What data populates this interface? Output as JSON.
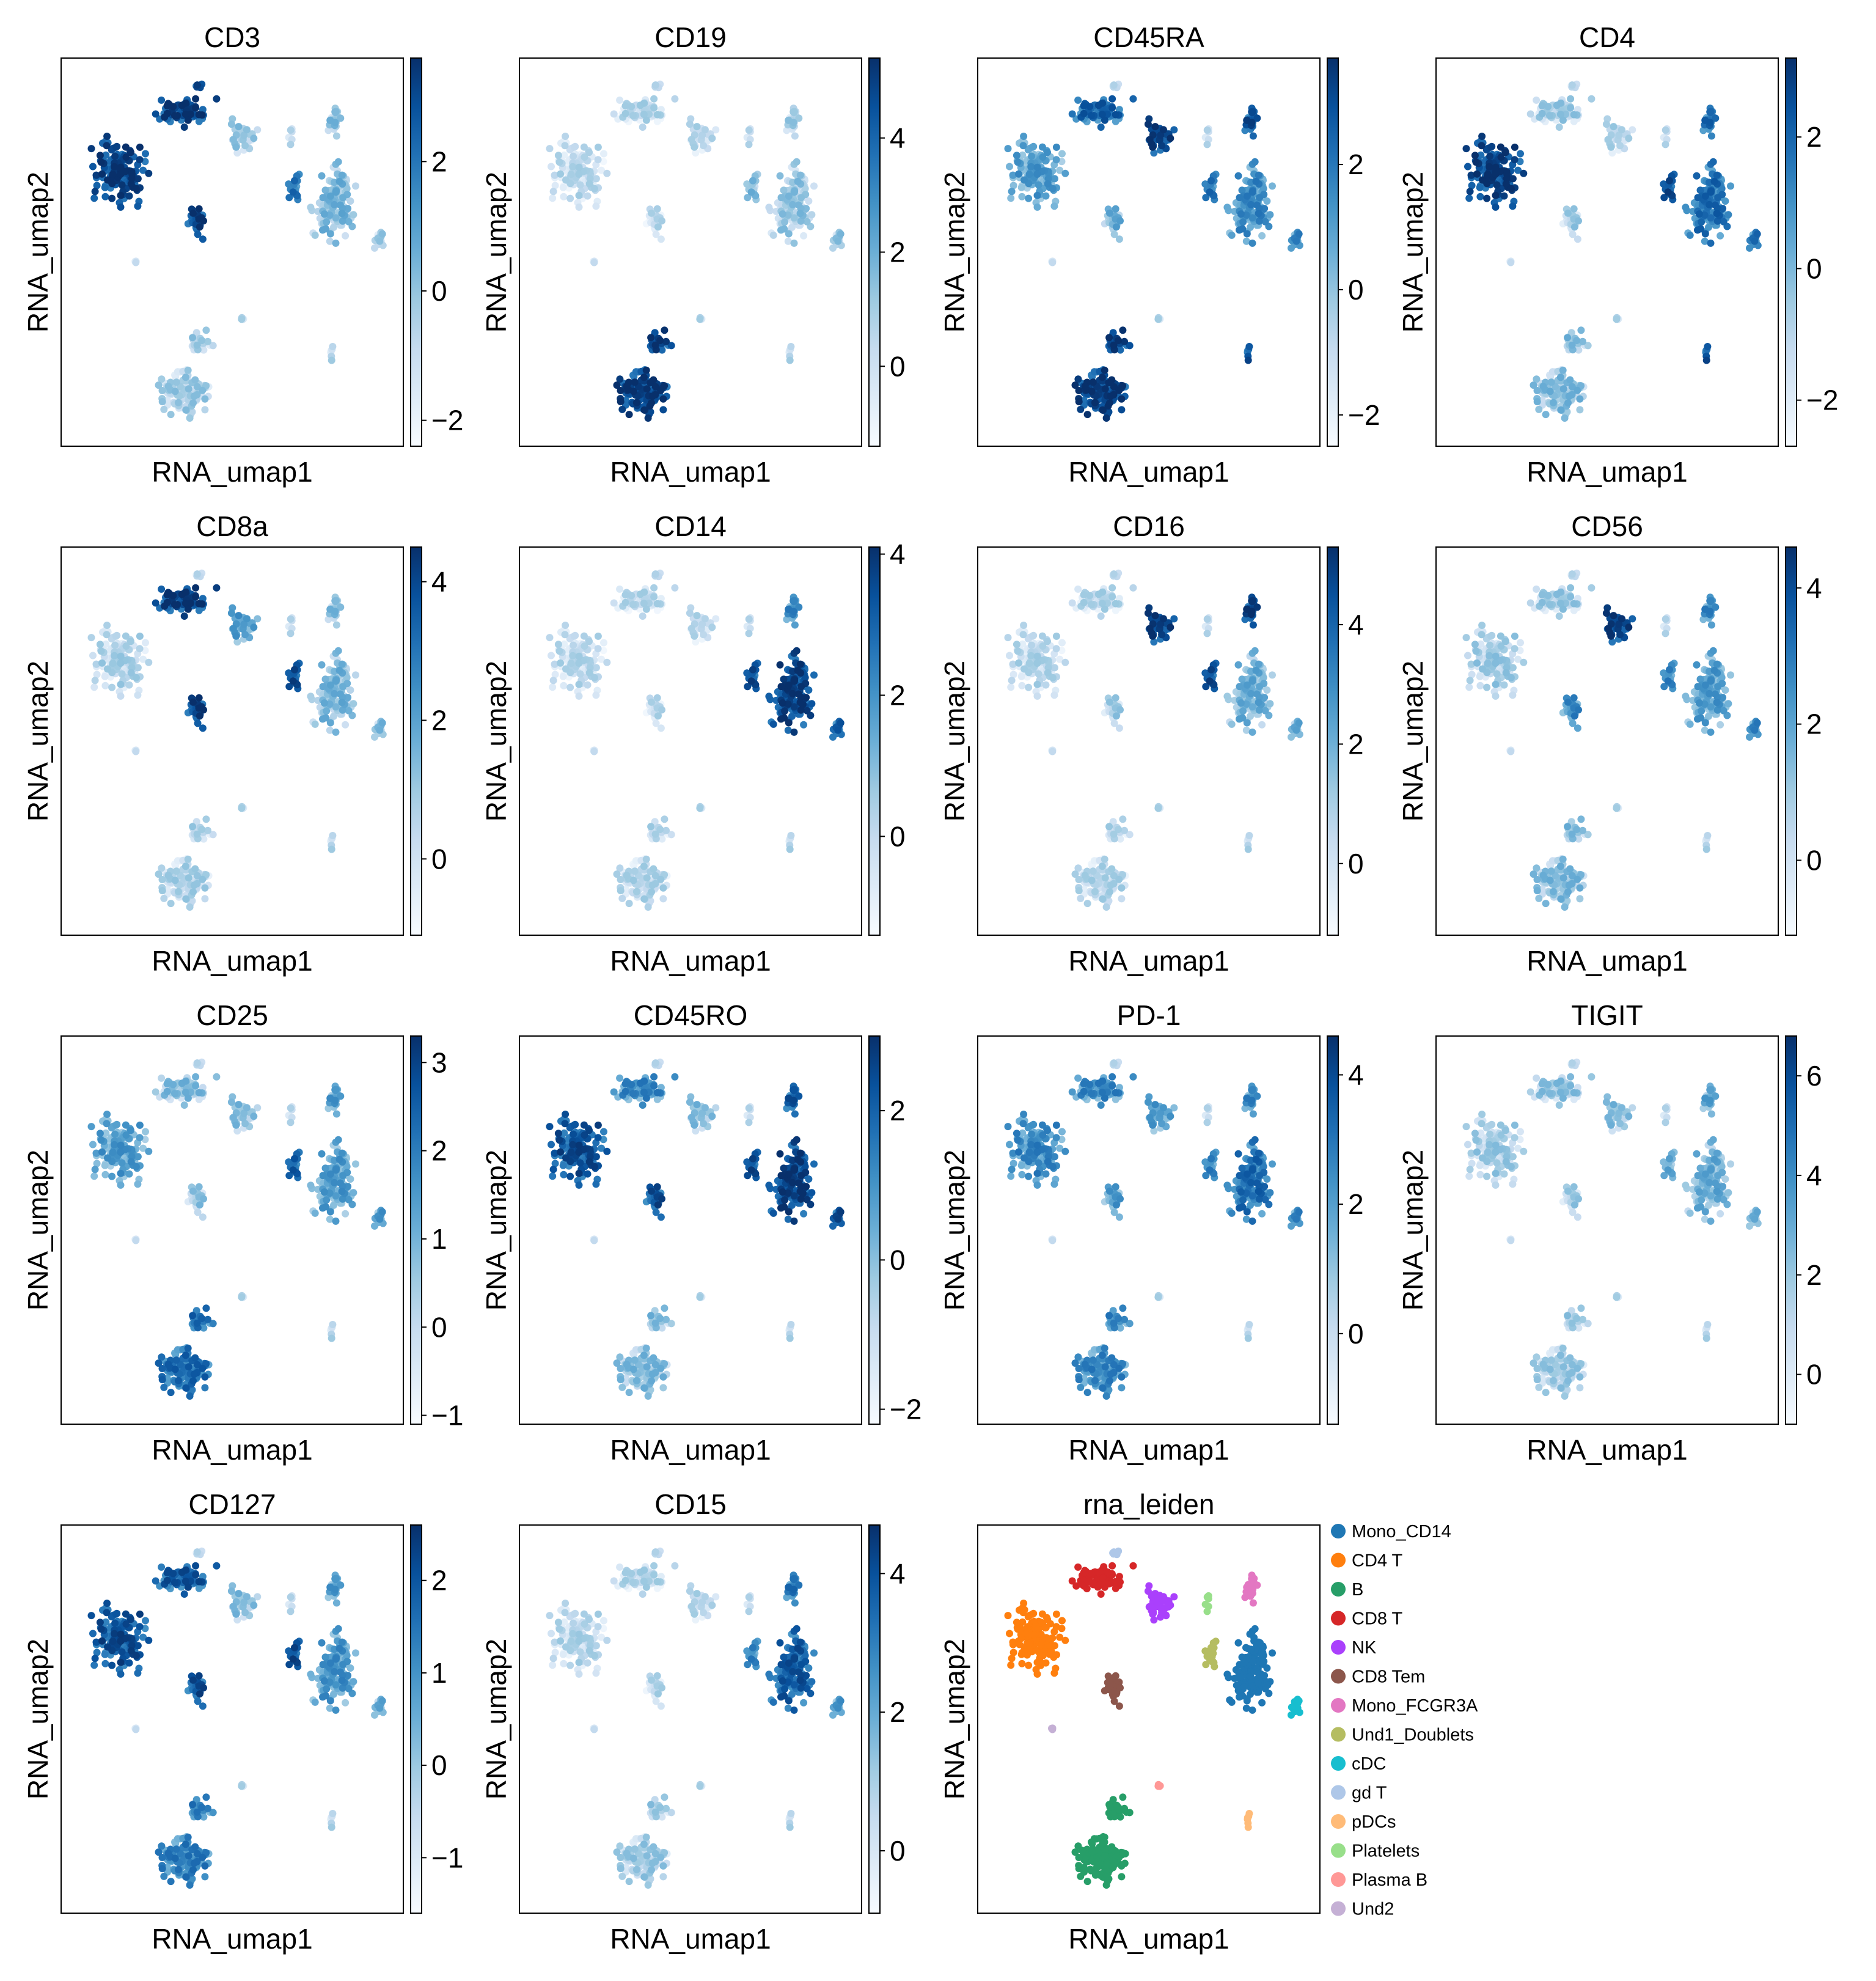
{
  "chart_data": [
    {
      "type": "scatter",
      "title": "CD3",
      "xlabel": "RNA_umap1",
      "ylabel": "RNA_umap2",
      "colormap": "Blues",
      "colorbar": {
        "range": [
          -2.4,
          3.6
        ],
        "ticks": [
          -2,
          0,
          2
        ]
      },
      "expression": {
        "CD4 T": 1.0,
        "CD8 T": 1.0,
        "CD8 Tem": 1.0,
        "NK": 0.25,
        "Mono_CD14": 0.35,
        "Mono_FCGR3A": 0.3,
        "B": 0.2,
        "cDC": 0.2,
        "Und1_Doublets": 0.7,
        "gd T": 1.0
      }
    },
    {
      "type": "scatter",
      "title": "CD19",
      "xlabel": "RNA_umap1",
      "ylabel": "RNA_umap2",
      "colormap": "Blues",
      "colorbar": {
        "range": [
          -1.4,
          5.4
        ],
        "ticks": [
          0,
          2,
          4
        ]
      },
      "expression": {
        "CD4 T": 0.1,
        "CD8 T": 0.12,
        "CD8 Tem": 0.1,
        "NK": 0.12,
        "Mono_CD14": 0.25,
        "Mono_FCGR3A": 0.2,
        "B": 1.0,
        "cDC": 0.25,
        "Und1_Doublets": 0.3
      }
    },
    {
      "type": "scatter",
      "title": "CD45RA",
      "xlabel": "RNA_umap1",
      "ylabel": "RNA_umap2",
      "colormap": "Blues",
      "colorbar": {
        "range": [
          -2.5,
          3.7
        ],
        "ticks": [
          -2,
          0,
          2
        ]
      },
      "expression": {
        "CD4 T": 0.5,
        "CD8 T": 0.8,
        "CD8 Tem": 0.4,
        "NK": 1.0,
        "Mono_CD14": 0.6,
        "Mono_FCGR3A": 0.9,
        "B": 1.0,
        "cDC": 0.6,
        "Und1_Doublets": 0.7,
        "pDCs": 0.9
      }
    },
    {
      "type": "scatter",
      "title": "CD4",
      "xlabel": "RNA_umap1",
      "ylabel": "RNA_umap2",
      "colormap": "Blues",
      "colorbar": {
        "range": [
          -2.7,
          3.2
        ],
        "ticks": [
          -2,
          0,
          2
        ]
      },
      "expression": {
        "CD4 T": 1.0,
        "CD8 T": 0.2,
        "CD8 Tem": 0.2,
        "NK": 0.15,
        "Mono_CD14": 0.75,
        "Mono_FCGR3A": 0.75,
        "B": 0.3,
        "cDC": 0.7,
        "Und1_Doublets": 0.9,
        "pDCs": 0.9
      }
    },
    {
      "type": "scatter",
      "title": "CD8a",
      "xlabel": "RNA_umap1",
      "ylabel": "RNA_umap2",
      "colormap": "Blues",
      "colorbar": {
        "range": [
          -1.1,
          4.5
        ],
        "ticks": [
          0,
          2,
          4
        ]
      },
      "expression": {
        "CD4 T": 0.15,
        "CD8 T": 1.0,
        "CD8 Tem": 1.0,
        "NK": 0.5,
        "Mono_CD14": 0.35,
        "Mono_FCGR3A": 0.3,
        "B": 0.15,
        "cDC": 0.3,
        "Und1_Doublets": 0.9
      }
    },
    {
      "type": "scatter",
      "title": "CD14",
      "xlabel": "RNA_umap1",
      "ylabel": "RNA_umap2",
      "colormap": "Blues",
      "colorbar": {
        "range": [
          -1.4,
          4.1
        ],
        "ticks": [
          0,
          2,
          4
        ]
      },
      "expression": {
        "CD4 T": 0.1,
        "CD8 T": 0.1,
        "CD8 Tem": 0.1,
        "NK": 0.1,
        "Mono_CD14": 1.0,
        "Mono_FCGR3A": 0.6,
        "B": 0.12,
        "cDC": 0.8,
        "Und1_Doublets": 0.9
      }
    },
    {
      "type": "scatter",
      "title": "CD16",
      "xlabel": "RNA_umap1",
      "ylabel": "RNA_umap2",
      "colormap": "Blues",
      "colorbar": {
        "range": [
          -1.2,
          5.3
        ],
        "ticks": [
          0,
          2,
          4
        ]
      },
      "expression": {
        "CD4 T": 0.12,
        "CD8 T": 0.12,
        "CD8 Tem": 0.2,
        "NK": 1.0,
        "Mono_CD14": 0.4,
        "Mono_FCGR3A": 1.0,
        "B": 0.12,
        "cDC": 0.4,
        "Und1_Doublets": 0.9
      }
    },
    {
      "type": "scatter",
      "title": "CD56",
      "xlabel": "RNA_umap1",
      "ylabel": "RNA_umap2",
      "colormap": "Blues",
      "colorbar": {
        "range": [
          -1.1,
          4.6
        ],
        "ticks": [
          0,
          2,
          4
        ]
      },
      "expression": {
        "CD4 T": 0.2,
        "CD8 T": 0.2,
        "CD8 Tem": 0.6,
        "NK": 1.0,
        "Mono_CD14": 0.5,
        "Mono_FCGR3A": 0.6,
        "B": 0.3,
        "cDC": 0.6,
        "Und1_Doublets": 0.6
      }
    },
    {
      "type": "scatter",
      "title": "CD25",
      "xlabel": "RNA_umap1",
      "ylabel": "RNA_umap2",
      "colormap": "Blues",
      "colorbar": {
        "range": [
          -1.1,
          3.3
        ],
        "ticks": [
          -1,
          0,
          1,
          2,
          3
        ]
      },
      "expression": {
        "CD4 T": 0.5,
        "CD8 T": 0.3,
        "CD8 Tem": 0.25,
        "NK": 0.3,
        "Mono_CD14": 0.5,
        "Mono_FCGR3A": 0.5,
        "B": 0.75,
        "cDC": 0.5,
        "Und1_Doublets": 0.8
      }
    },
    {
      "type": "scatter",
      "title": "CD45RO",
      "xlabel": "RNA_umap1",
      "ylabel": "RNA_umap2",
      "colormap": "Blues",
      "colorbar": {
        "range": [
          -2.2,
          3.0
        ],
        "ticks": [
          -2,
          0,
          2
        ]
      },
      "expression": {
        "CD4 T": 0.9,
        "CD8 T": 0.6,
        "CD8 Tem": 0.9,
        "NK": 0.3,
        "Mono_CD14": 1.0,
        "Mono_FCGR3A": 0.85,
        "B": 0.3,
        "cDC": 0.9,
        "Und1_Doublets": 0.9
      }
    },
    {
      "type": "scatter",
      "title": "PD-1",
      "xlabel": "RNA_umap1",
      "ylabel": "RNA_umap2",
      "colormap": "Blues",
      "colorbar": {
        "range": [
          -1.4,
          4.6
        ],
        "ticks": [
          0,
          2,
          4
        ]
      },
      "expression": {
        "CD4 T": 0.6,
        "CD8 T": 0.6,
        "CD8 Tem": 0.5,
        "NK": 0.5,
        "Mono_CD14": 0.75,
        "Mono_FCGR3A": 0.6,
        "B": 0.6,
        "cDC": 0.6,
        "Und1_Doublets": 0.6
      }
    },
    {
      "type": "scatter",
      "title": "TIGIT",
      "xlabel": "RNA_umap1",
      "ylabel": "RNA_umap2",
      "colormap": "Blues",
      "colorbar": {
        "range": [
          -1.0,
          6.8
        ],
        "ticks": [
          0,
          2,
          4,
          6
        ]
      },
      "expression": {
        "CD4 T": 0.2,
        "CD8 T": 0.25,
        "CD8 Tem": 0.2,
        "NK": 0.3,
        "Mono_CD14": 0.4,
        "Mono_FCGR3A": 0.45,
        "B": 0.2,
        "cDC": 0.35,
        "Und1_Doublets": 0.4
      }
    },
    {
      "type": "scatter",
      "title": "CD127",
      "xlabel": "RNA_umap1",
      "ylabel": "RNA_umap2",
      "colormap": "Blues",
      "colorbar": {
        "range": [
          -1.6,
          2.6
        ],
        "ticks": [
          -1,
          0,
          1,
          2
        ]
      },
      "expression": {
        "CD4 T": 0.9,
        "CD8 T": 0.85,
        "CD8 Tem": 0.9,
        "NK": 0.3,
        "Mono_CD14": 0.55,
        "Mono_FCGR3A": 0.5,
        "B": 0.65,
        "cDC": 0.4,
        "Und1_Doublets": 0.9
      }
    },
    {
      "type": "scatter",
      "title": "CD15",
      "xlabel": "RNA_umap1",
      "ylabel": "RNA_umap2",
      "colormap": "Blues",
      "colorbar": {
        "range": [
          -0.9,
          4.7
        ],
        "ticks": [
          0,
          2,
          4
        ]
      },
      "expression": {
        "CD4 T": 0.12,
        "CD8 T": 0.12,
        "CD8 Tem": 0.12,
        "NK": 0.12,
        "Mono_CD14": 0.85,
        "Mono_FCGR3A": 0.7,
        "B": 0.2,
        "cDC": 0.5,
        "Und1_Doublets": 0.6
      }
    },
    {
      "type": "scatter",
      "title": "rna_leiden",
      "xlabel": "RNA_umap1",
      "ylabel": "RNA_umap2",
      "categorical": true,
      "legend": [
        {
          "name": "Mono_CD14",
          "color": "#1f77b4"
        },
        {
          "name": "CD4 T",
          "color": "#ff7f0e"
        },
        {
          "name": "B",
          "color": "#279e68"
        },
        {
          "name": "CD8 T",
          "color": "#d62728"
        },
        {
          "name": "NK",
          "color": "#aa40fc"
        },
        {
          "name": "CD8 Tem",
          "color": "#8c564b"
        },
        {
          "name": "Mono_FCGR3A",
          "color": "#e377c2"
        },
        {
          "name": "Und1_Doublets",
          "color": "#b5bd61"
        },
        {
          "name": "cDC",
          "color": "#17becf"
        },
        {
          "name": "gd T",
          "color": "#aec7e8"
        },
        {
          "name": "pDCs",
          "color": "#ffbb78"
        },
        {
          "name": "Platelets",
          "color": "#98df8a"
        },
        {
          "name": "Plasma B",
          "color": "#ff9896"
        },
        {
          "name": "Und2",
          "color": "#c5b0d5"
        }
      ]
    }
  ]
}
